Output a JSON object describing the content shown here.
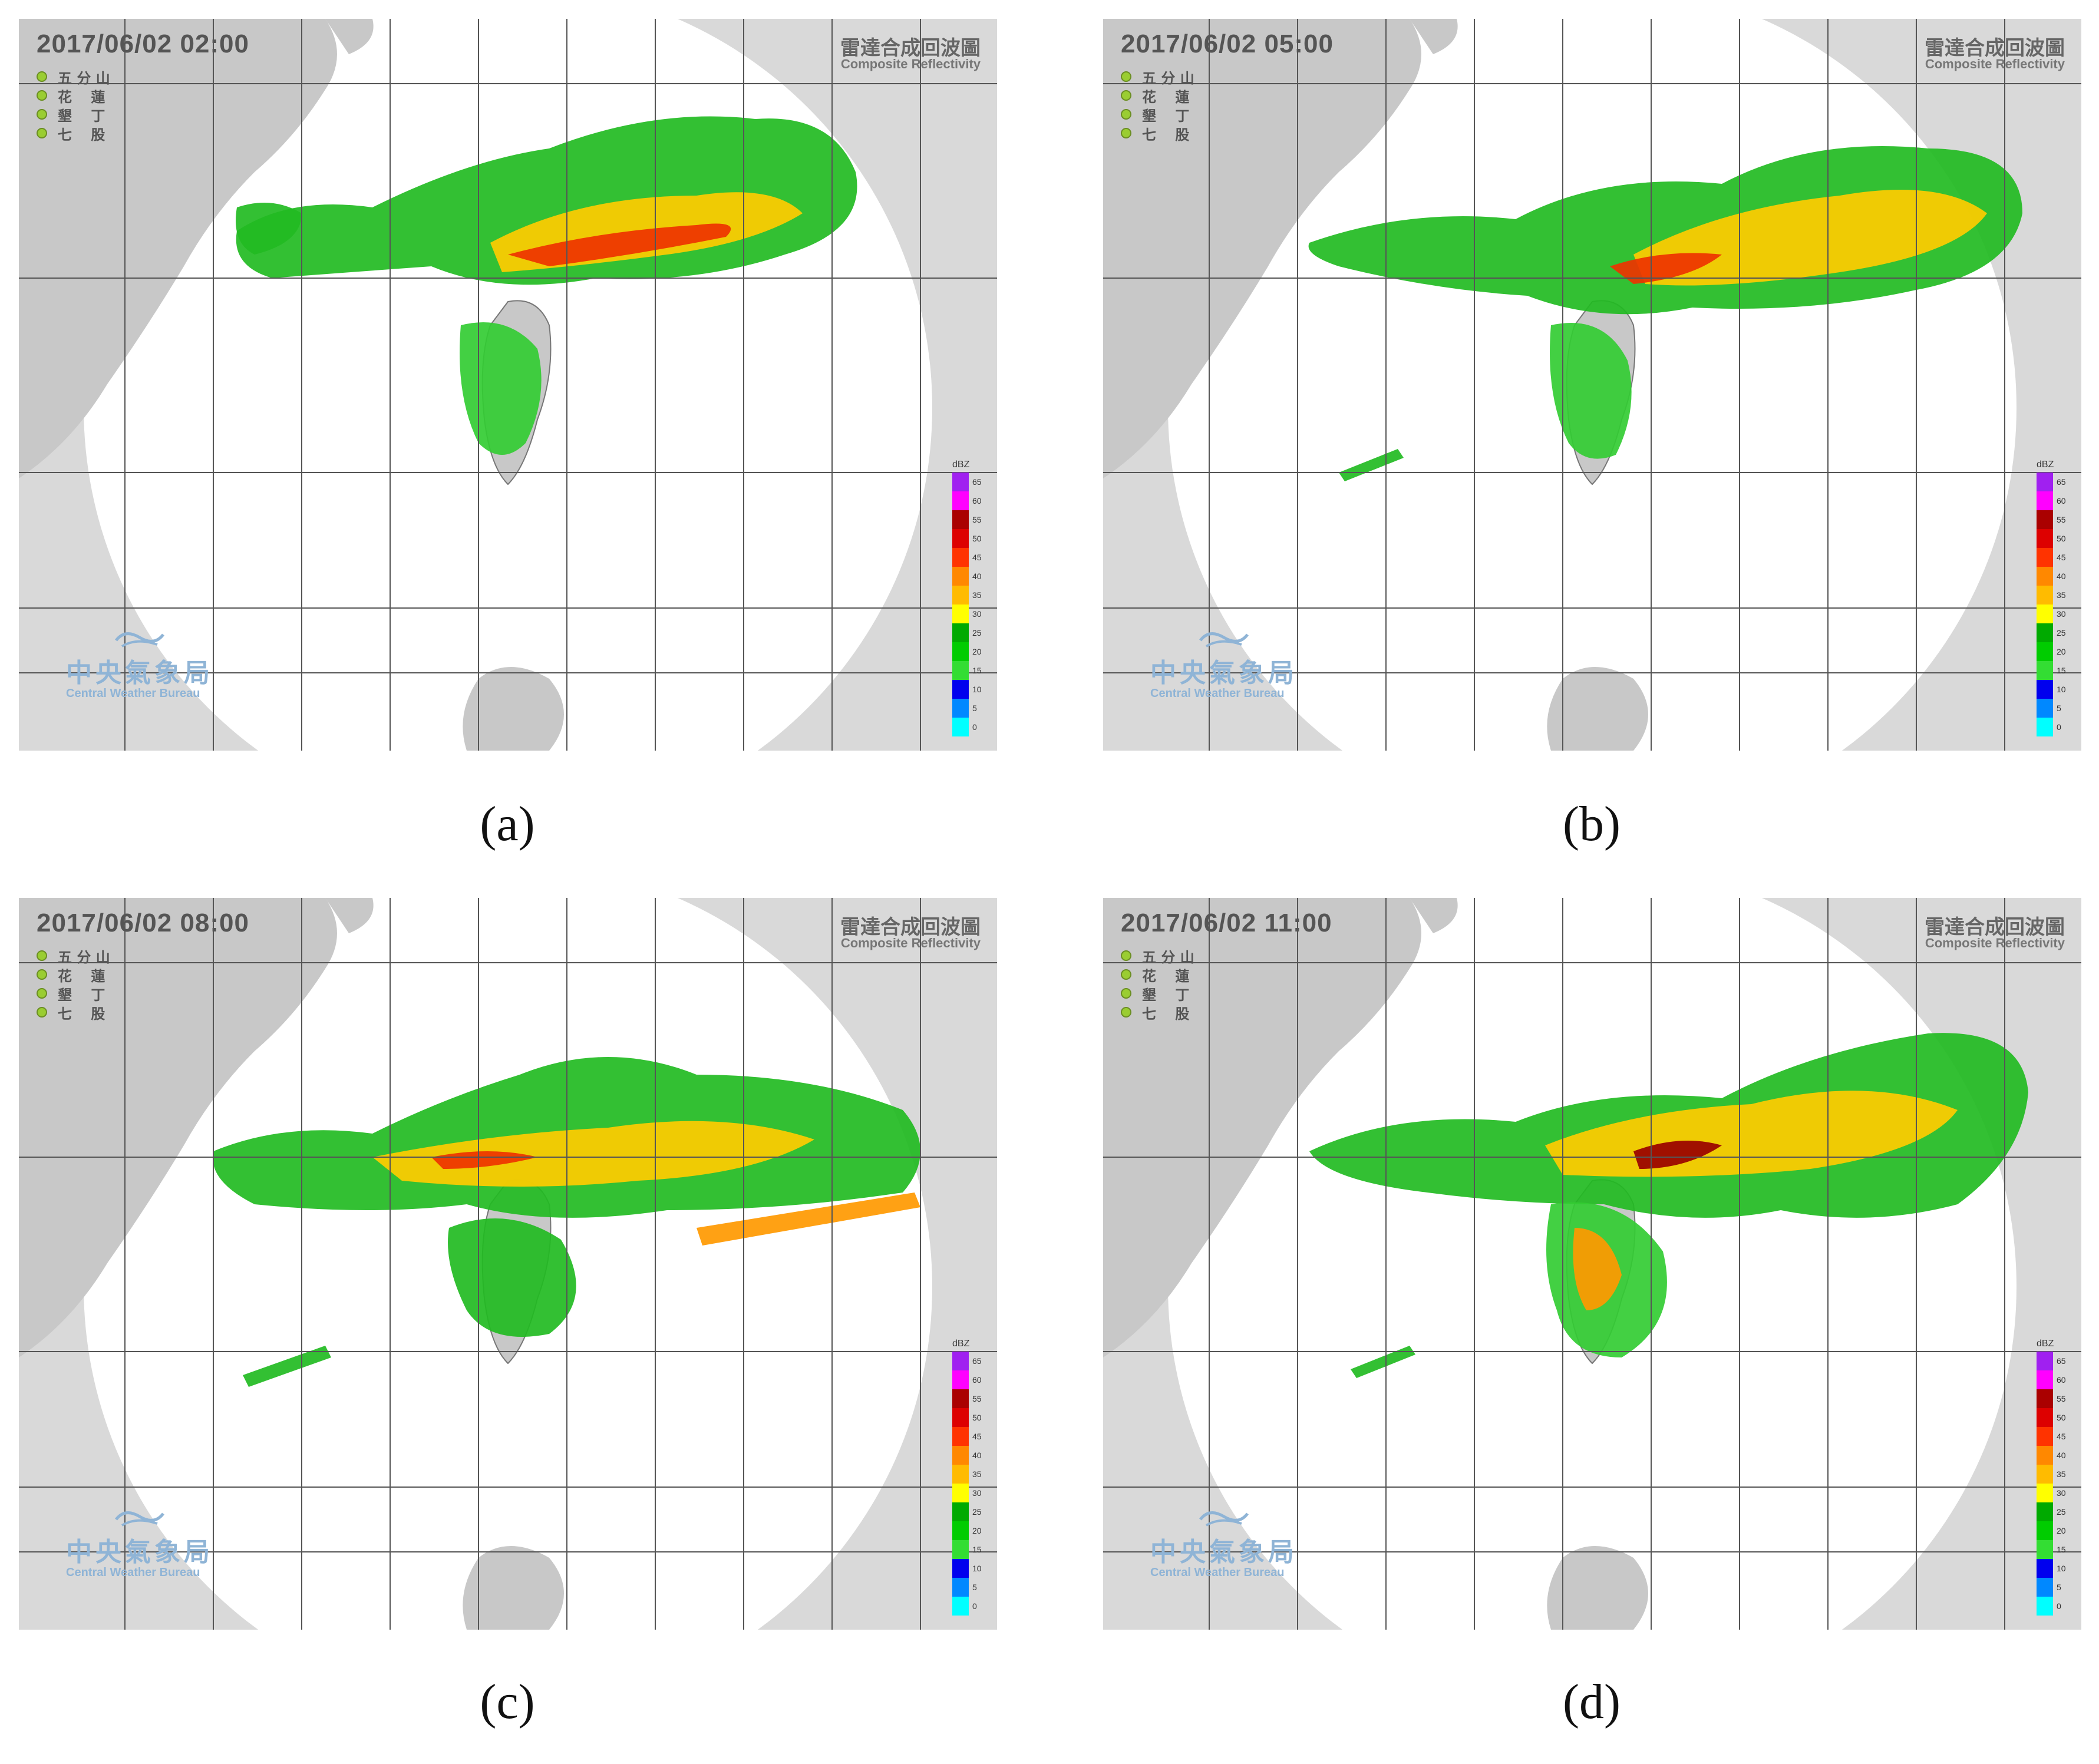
{
  "panels": [
    {
      "caption": "(a)",
      "timestamp": "2017/06/02  02:00"
    },
    {
      "caption": "(b)",
      "timestamp": "2017/06/02  05:00"
    },
    {
      "caption": "(c)",
      "timestamp": "2017/06/02  08:00"
    },
    {
      "caption": "(d)",
      "timestamp": "2017/06/02  11:00"
    }
  ],
  "map_title_zh": "雷達合成回波圖",
  "map_title_en": "Composite Reflectivity",
  "stations": [
    "五 分 山",
    "花　 蓮",
    "墾　 丁",
    "七　 股"
  ],
  "logo": {
    "name_zh": "中央氣象局",
    "name_en": "Central Weather Bureau"
  },
  "legend": {
    "unit": "dBZ",
    "levels": [
      {
        "label": "65",
        "color": "#a020f0"
      },
      {
        "label": "60",
        "color": "#ff00ff"
      },
      {
        "label": "55",
        "color": "#aa0000"
      },
      {
        "label": "50",
        "color": "#dd0000"
      },
      {
        "label": "45",
        "color": "#ff3300"
      },
      {
        "label": "40",
        "color": "#ff8800"
      },
      {
        "label": "35",
        "color": "#ffbb00"
      },
      {
        "label": "30",
        "color": "#ffff00"
      },
      {
        "label": "25",
        "color": "#00aa00"
      },
      {
        "label": "20",
        "color": "#00cc00"
      },
      {
        "label": "15",
        "color": "#33dd33"
      },
      {
        "label": "10",
        "color": "#0000ee"
      },
      {
        "label": "5",
        "color": "#0088ff"
      },
      {
        "label": "0",
        "color": "#00ffff"
      }
    ]
  },
  "colors": {
    "land": "#c8c8c8",
    "radar_disc": "#ffffff",
    "sea_outside": "#d9d9d9",
    "grid": "#555555"
  }
}
